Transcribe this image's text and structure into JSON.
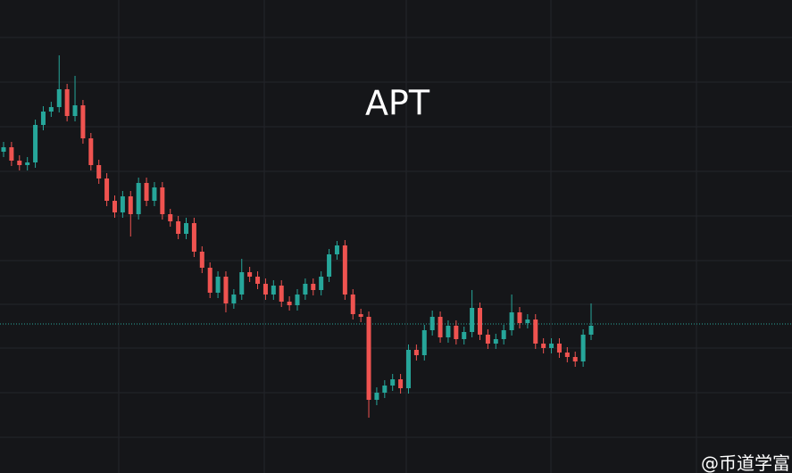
{
  "chart_data": {
    "type": "candlestick",
    "title": "APT",
    "watermark": "@币道学富",
    "ylim": [
      0,
      530
    ],
    "up_color": "#26a69a",
    "down_color": "#ef5350",
    "price_line": 167,
    "price_line_color": "#26a69a",
    "open": [
      360,
      365,
      350,
      345,
      348,
      390,
      405,
      410,
      430,
      400,
      412,
      375,
      345,
      330,
      305,
      292,
      310,
      290,
      325,
      305,
      320,
      290,
      282,
      268,
      280,
      248,
      230,
      202,
      220,
      190,
      200,
      225,
      220,
      212,
      200,
      210,
      192,
      188,
      200,
      212,
      205,
      220,
      245,
      255,
      200,
      178,
      175,
      82,
      90,
      98,
      105,
      95,
      138,
      132,
      160,
      175,
      152,
      165,
      150,
      158,
      185,
      155,
      145,
      150,
      160,
      180,
      168,
      172,
      145,
      140,
      145,
      135,
      130,
      125,
      155
    ],
    "high": [
      371,
      371,
      356,
      354,
      396,
      411,
      416,
      468,
      436,
      445,
      418,
      381,
      351,
      336,
      311,
      316,
      316,
      331,
      331,
      326,
      326,
      296,
      288,
      286,
      286,
      254,
      236,
      226,
      226,
      206,
      240,
      231,
      226,
      218,
      216,
      216,
      198,
      206,
      218,
      218,
      226,
      251,
      260,
      261,
      206,
      184,
      181,
      96,
      104,
      111,
      111,
      144,
      144,
      166,
      182,
      181,
      171,
      171,
      164,
      205,
      191,
      161,
      156,
      166,
      200,
      186,
      178,
      178,
      151,
      151,
      151,
      141,
      136,
      161,
      190
    ],
    "low": [
      354,
      344,
      339,
      339,
      342,
      384,
      399,
      404,
      394,
      394,
      369,
      339,
      324,
      299,
      286,
      286,
      265,
      284,
      299,
      299,
      284,
      276,
      262,
      262,
      242,
      224,
      196,
      196,
      180,
      184,
      194,
      214,
      206,
      194,
      194,
      186,
      182,
      182,
      194,
      199,
      199,
      214,
      239,
      194,
      172,
      169,
      62,
      76,
      84,
      92,
      89,
      89,
      126,
      126,
      154,
      146,
      146,
      144,
      144,
      152,
      149,
      139,
      139,
      144,
      154,
      162,
      162,
      139,
      134,
      134,
      129,
      124,
      119,
      119,
      149
    ],
    "close": [
      365,
      350,
      345,
      348,
      390,
      405,
      410,
      430,
      400,
      412,
      375,
      345,
      330,
      305,
      292,
      310,
      290,
      325,
      305,
      320,
      290,
      282,
      268,
      280,
      248,
      230,
      202,
      220,
      190,
      200,
      225,
      220,
      212,
      200,
      210,
      192,
      188,
      200,
      212,
      205,
      220,
      245,
      255,
      200,
      178,
      175,
      82,
      90,
      98,
      105,
      95,
      138,
      132,
      160,
      175,
      152,
      165,
      150,
      158,
      185,
      155,
      145,
      150,
      160,
      180,
      168,
      172,
      145,
      140,
      145,
      135,
      130,
      125,
      155,
      165
    ]
  }
}
